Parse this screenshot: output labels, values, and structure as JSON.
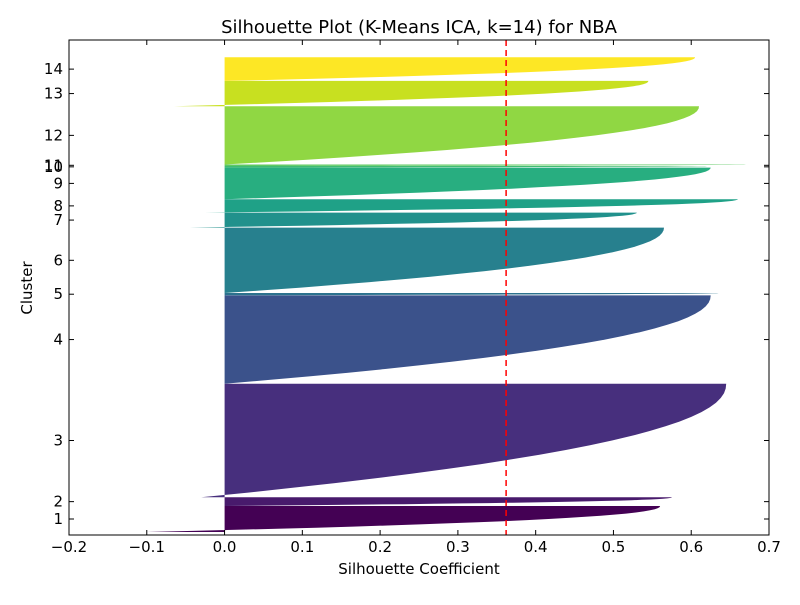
{
  "chart_data": {
    "type": "silhouette",
    "title": "Silhouette Plot (K-Means ICA, k=14) for NBA",
    "xlabel": "Silhouette Coefficient",
    "ylabel": "Cluster",
    "xlim": [
      -0.2,
      0.7
    ],
    "xticks": [
      -0.2,
      -0.1,
      0.0,
      0.1,
      0.2,
      0.3,
      0.4,
      0.5,
      0.6,
      0.7
    ],
    "xtick_labels": [
      "−0.2",
      "−0.1",
      "0.0",
      "0.1",
      "0.2",
      "0.3",
      "0.4",
      "0.5",
      "0.6",
      "0.7"
    ],
    "average_silhouette": 0.362,
    "average_line_color": "#ff0000",
    "grid": false,
    "clusters": [
      {
        "label": "1",
        "samples": 33,
        "min": -0.1,
        "max": 0.56,
        "color": "#440154"
      },
      {
        "label": "2",
        "samples": 11,
        "min": 0.0,
        "max": 0.575,
        "color": "#481a6c"
      },
      {
        "label": "3",
        "samples": 144,
        "min": -0.03,
        "max": 0.645,
        "color": "#472f7d"
      },
      {
        "label": "4",
        "samples": 112,
        "min": 0.0,
        "max": 0.625,
        "color": "#3b528b"
      },
      {
        "label": "5",
        "samples": 3,
        "min": -0.06,
        "max": 0.635,
        "color": "#2c728e"
      },
      {
        "label": "6",
        "samples": 83,
        "min": 0.0,
        "max": 0.565,
        "color": "#27808e"
      },
      {
        "label": "7",
        "samples": 19,
        "min": -0.045,
        "max": 0.53,
        "color": "#21918c"
      },
      {
        "label": "8",
        "samples": 17,
        "min": -0.025,
        "max": 0.66,
        "color": "#1fa187"
      },
      {
        "label": "9",
        "samples": 40,
        "min": 0.0,
        "max": 0.625,
        "color": "#28ae80"
      },
      {
        "label": "10",
        "samples": 2,
        "min": 0.0,
        "max": 0.62,
        "color": "#3fbc73"
      },
      {
        "label": "11",
        "samples": 1,
        "min": 0.0,
        "max": 0.67,
        "color": "#5ec962"
      },
      {
        "label": "12",
        "samples": 74,
        "min": 0.0,
        "max": 0.61,
        "color": "#90d743"
      },
      {
        "label": "13",
        "samples": 32,
        "min": -0.065,
        "max": 0.545,
        "color": "#c8e020"
      },
      {
        "label": "14",
        "samples": 30,
        "min": 0.0,
        "max": 0.605,
        "color": "#fde725"
      }
    ]
  }
}
